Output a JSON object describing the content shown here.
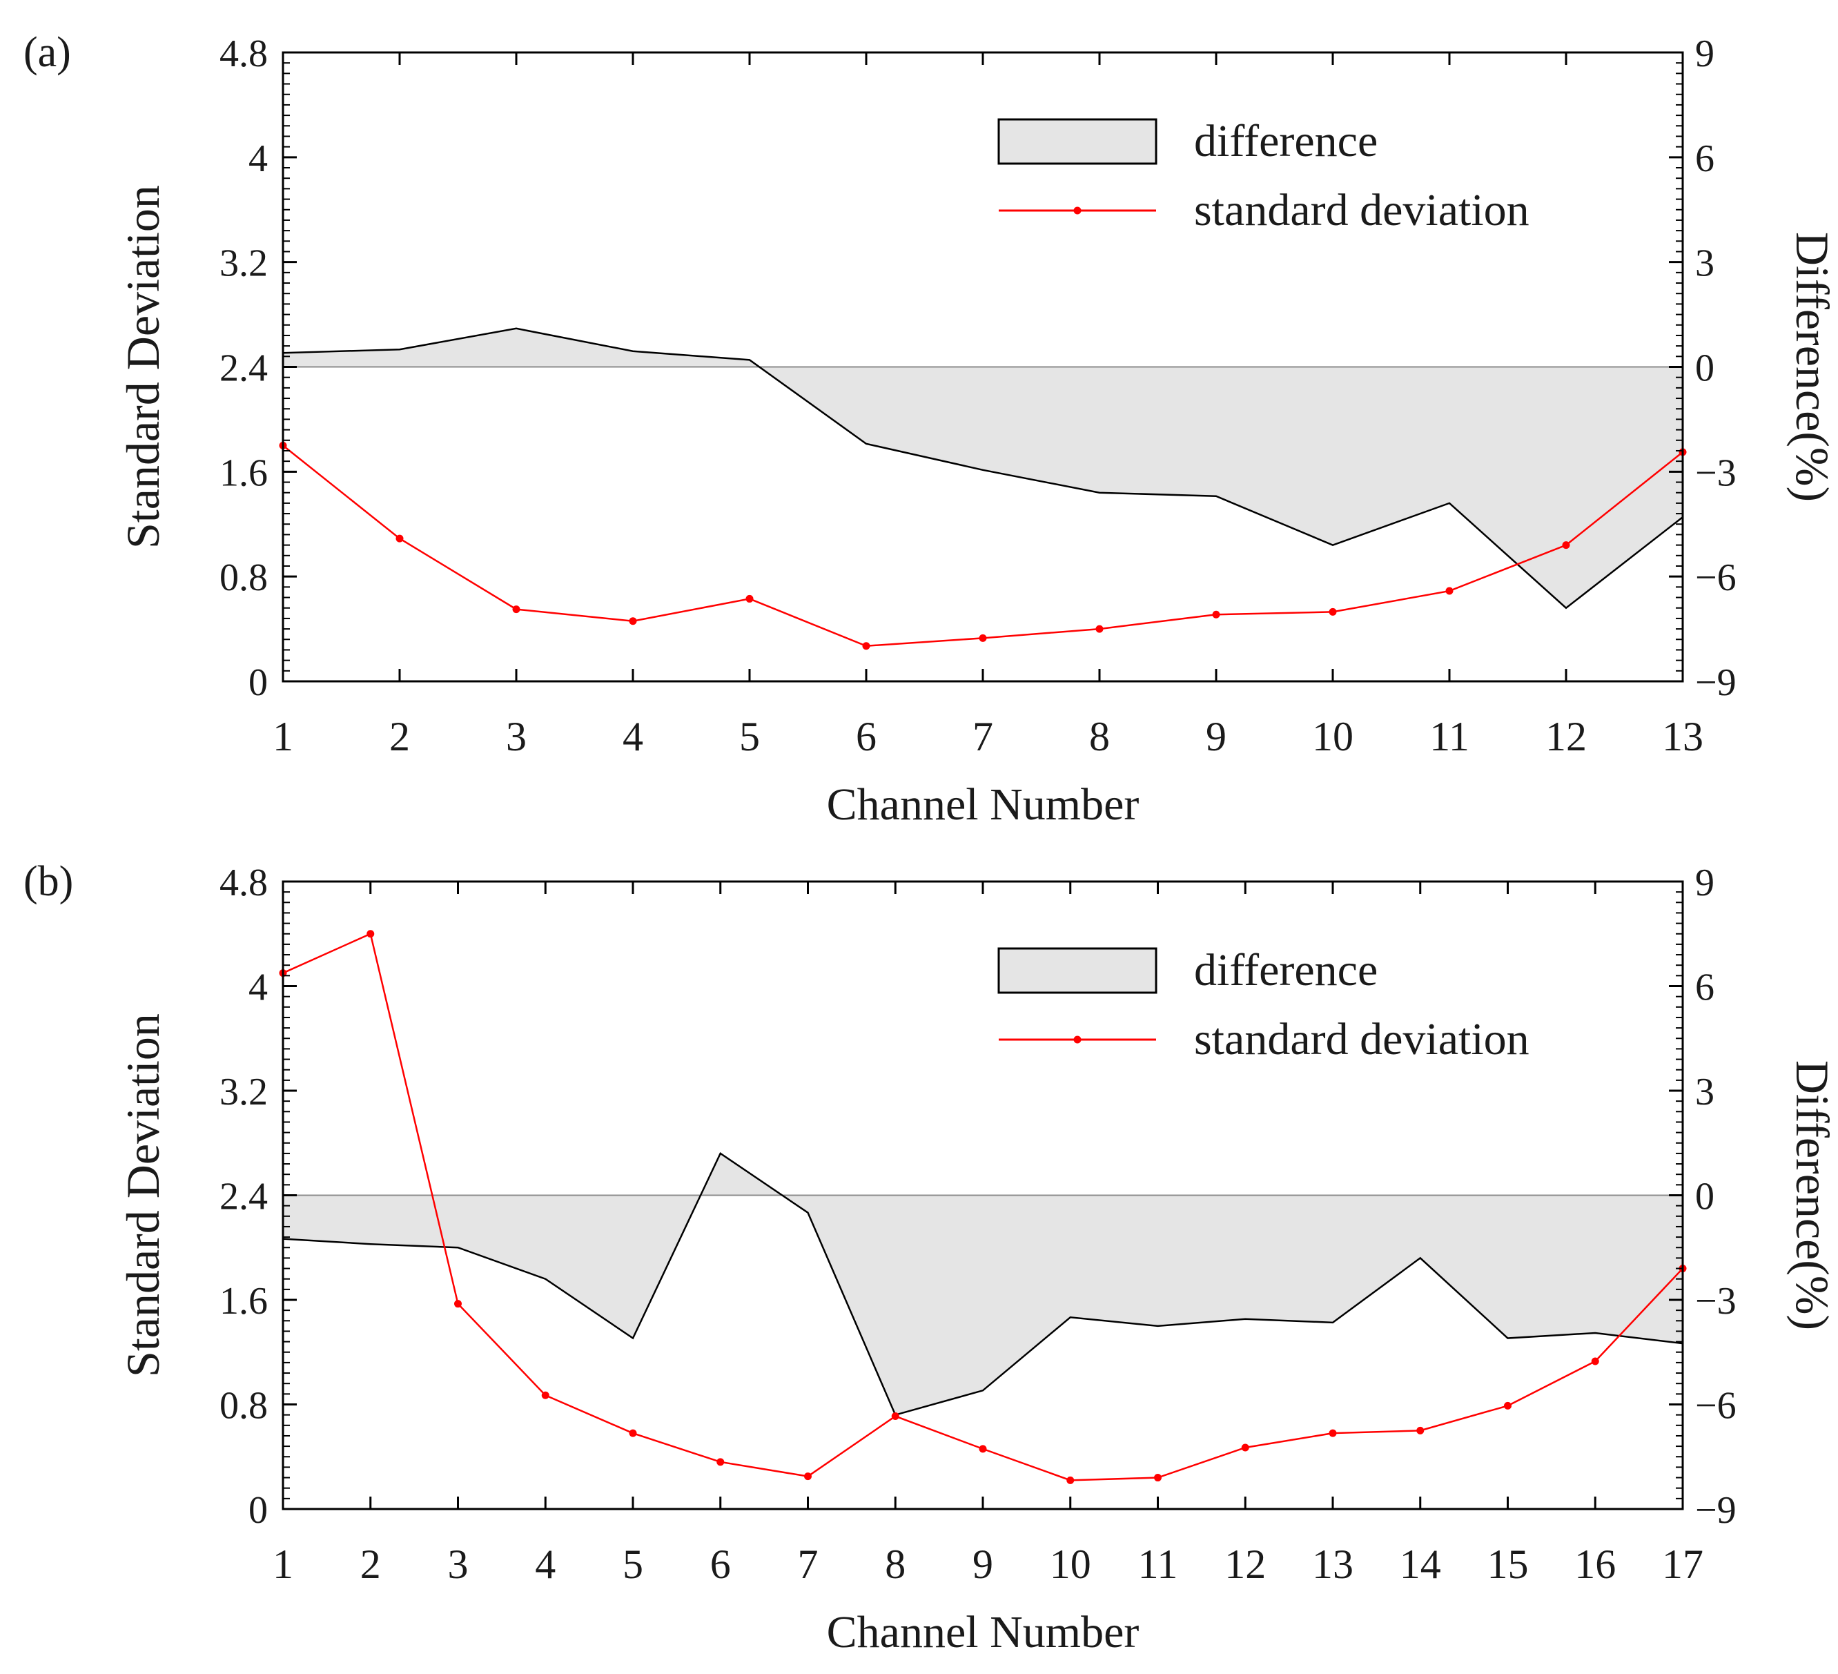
{
  "colors": {
    "difference_fill": "#e5e5e5",
    "difference_line": "#000000",
    "zero_line": "#8c8c8c",
    "std_line": "#ff0000",
    "axes": "#000000"
  },
  "chart_data": [
    {
      "type": "line",
      "panel_label": "(a)",
      "xlabel": "Channel Number",
      "ylabel_left": "Standard Deviation",
      "ylabel_right": "Difference(%)",
      "ylim_left": [
        0,
        4.8
      ],
      "yticks_left": [
        0,
        0.8,
        1.6,
        2.4,
        3.2,
        4,
        4.8
      ],
      "yticklabels_left": [
        "0",
        "0.8",
        "1.6",
        "2.4",
        "3.2",
        "4",
        "4.8"
      ],
      "ylim_right": [
        -9,
        9
      ],
      "yticks_right": [
        -9,
        -6,
        -3,
        0,
        3,
        6,
        9
      ],
      "yticklabels_right": [
        "−9",
        "−6",
        "−3",
        "0",
        "3",
        "6",
        "9"
      ],
      "xlim": [
        1,
        13
      ],
      "x": [
        1,
        2,
        3,
        4,
        5,
        6,
        7,
        8,
        9,
        10,
        11,
        12,
        13
      ],
      "xticklabels": [
        "1",
        "2",
        "3",
        "4",
        "5",
        "6",
        "7",
        "8",
        "9",
        "10",
        "11",
        "12",
        "13"
      ],
      "legend": {
        "difference": "difference",
        "standard_deviation": "standard deviation"
      },
      "series": [
        {
          "name": "difference",
          "axis": "right",
          "style": "filled-area",
          "values": [
            0.4,
            0.5,
            1.1,
            0.45,
            0.2,
            -2.2,
            -2.95,
            -3.6,
            -3.7,
            -5.1,
            -3.9,
            -6.9,
            -4.3
          ]
        },
        {
          "name": "standard deviation",
          "axis": "left",
          "style": "line-marker",
          "values": [
            1.8,
            1.09,
            0.55,
            0.46,
            0.63,
            0.27,
            0.33,
            0.4,
            0.51,
            0.53,
            0.69,
            1.04,
            1.75
          ]
        }
      ]
    },
    {
      "type": "line",
      "panel_label": "(b)",
      "xlabel": "Channel Number",
      "ylabel_left": "Standard Deviation",
      "ylabel_right": "Difference(%)",
      "ylim_left": [
        0,
        4.8
      ],
      "yticks_left": [
        0,
        0.8,
        1.6,
        2.4,
        3.2,
        4,
        4.8
      ],
      "yticklabels_left": [
        "0",
        "0.8",
        "1.6",
        "2.4",
        "3.2",
        "4",
        "4.8"
      ],
      "ylim_right": [
        -9,
        9
      ],
      "yticks_right": [
        -9,
        -6,
        -3,
        0,
        3,
        6,
        9
      ],
      "yticklabels_right": [
        "−9",
        "−6",
        "−3",
        "0",
        "3",
        "6",
        "9"
      ],
      "xlim": [
        1,
        17
      ],
      "x": [
        1,
        2,
        3,
        4,
        5,
        6,
        7,
        8,
        9,
        10,
        11,
        12,
        13,
        14,
        15,
        16,
        17
      ],
      "xticklabels": [
        "1",
        "2",
        "3",
        "4",
        "5",
        "6",
        "7",
        "8",
        "9",
        "10",
        "11",
        "12",
        "13",
        "14",
        "15",
        "16",
        "17"
      ],
      "legend": {
        "difference": "difference",
        "standard_deviation": "standard deviation"
      },
      "series": [
        {
          "name": "difference",
          "axis": "right",
          "style": "filled-area",
          "values": [
            -1.25,
            -1.4,
            -1.5,
            -2.4,
            -4.1,
            1.2,
            -0.5,
            -6.3,
            -5.6,
            -3.5,
            -3.75,
            -3.55,
            -3.65,
            -1.8,
            -4.1,
            -3.95,
            -4.25
          ]
        },
        {
          "name": "standard deviation",
          "axis": "left",
          "style": "line-marker",
          "values": [
            4.1,
            4.4,
            1.57,
            0.87,
            0.58,
            0.36,
            0.25,
            0.71,
            0.46,
            0.22,
            0.24,
            0.47,
            0.58,
            0.6,
            0.79,
            1.13,
            1.84
          ]
        }
      ]
    }
  ]
}
